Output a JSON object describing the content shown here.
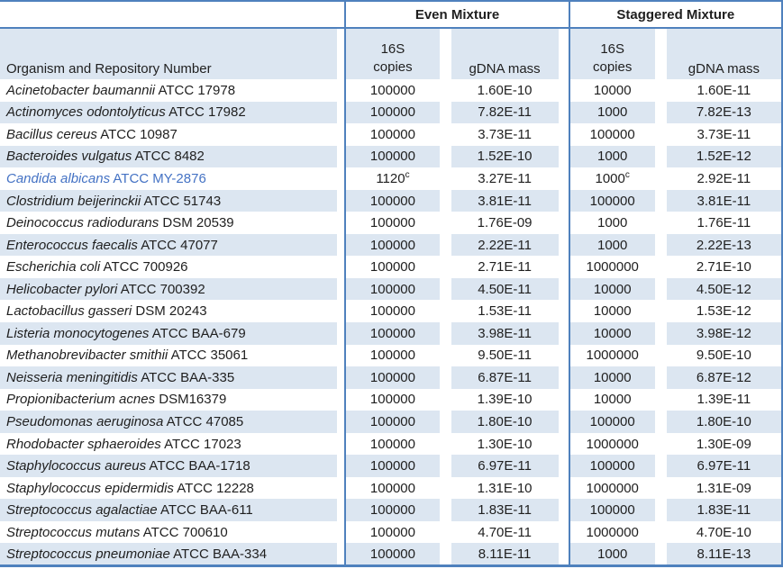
{
  "table": {
    "group_headers": {
      "organism": "",
      "even": "Even Mixture",
      "staggered": "Staggered Mixture"
    },
    "col_headers": {
      "organism": "Organism and Repository Number",
      "even_copies": "16S copies",
      "even_gdna": "gDNA mass",
      "staggered_copies": "16S copies",
      "staggered_gdna": "gDNA mass"
    },
    "colors": {
      "border_blue": "#4f81bd",
      "stripe_blue": "#dce6f1",
      "highlight_text_blue": "#4472c4"
    },
    "rows": [
      {
        "name": "Acinetobacter baumannii",
        "repo": "ATCC 17978",
        "even_copies": "100000",
        "even_sup": "",
        "even_gdna": "1.60E-10",
        "stag_copies": "10000",
        "stag_sup": "",
        "stag_gdna": "1.60E-11",
        "highlight": false
      },
      {
        "name": "Actinomyces odontolyticus",
        "repo": "ATCC 17982",
        "even_copies": "100000",
        "even_sup": "",
        "even_gdna": "7.82E-11",
        "stag_copies": "1000",
        "stag_sup": "",
        "stag_gdna": "7.82E-13",
        "highlight": false
      },
      {
        "name": "Bacillus cereus",
        "repo": "ATCC 10987",
        "even_copies": "100000",
        "even_sup": "",
        "even_gdna": "3.73E-11",
        "stag_copies": "100000",
        "stag_sup": "",
        "stag_gdna": "3.73E-11",
        "highlight": false
      },
      {
        "name": "Bacteroides vulgatus",
        "repo": "ATCC 8482",
        "even_copies": "100000",
        "even_sup": "",
        "even_gdna": "1.52E-10",
        "stag_copies": "1000",
        "stag_sup": "",
        "stag_gdna": "1.52E-12",
        "highlight": false
      },
      {
        "name": "Candida albicans",
        "repo": "ATCC MY-2876",
        "even_copies": "1120",
        "even_sup": "c",
        "even_gdna": "3.27E-11",
        "stag_copies": "1000",
        "stag_sup": "c",
        "stag_gdna": "2.92E-11",
        "highlight": true
      },
      {
        "name": "Clostridium beijerinckii",
        "repo": "ATCC 51743",
        "even_copies": "100000",
        "even_sup": "",
        "even_gdna": "3.81E-11",
        "stag_copies": "100000",
        "stag_sup": "",
        "stag_gdna": "3.81E-11",
        "highlight": false
      },
      {
        "name": "Deinococcus radiodurans",
        "repo": "DSM 20539",
        "even_copies": "100000",
        "even_sup": "",
        "even_gdna": "1.76E-09",
        "stag_copies": "1000",
        "stag_sup": "",
        "stag_gdna": "1.76E-11",
        "highlight": false
      },
      {
        "name": "Enterococcus faecalis",
        "repo": "ATCC 47077",
        "even_copies": "100000",
        "even_sup": "",
        "even_gdna": "2.22E-11",
        "stag_copies": "1000",
        "stag_sup": "",
        "stag_gdna": "2.22E-13",
        "highlight": false
      },
      {
        "name": "Escherichia coli",
        "repo": "ATCC 700926",
        "even_copies": "100000",
        "even_sup": "",
        "even_gdna": "2.71E-11",
        "stag_copies": "1000000",
        "stag_sup": "",
        "stag_gdna": "2.71E-10",
        "highlight": false
      },
      {
        "name": "Helicobacter pylori",
        "repo": "ATCC 700392",
        "even_copies": "100000",
        "even_sup": "",
        "even_gdna": "4.50E-11",
        "stag_copies": "10000",
        "stag_sup": "",
        "stag_gdna": "4.50E-12",
        "highlight": false
      },
      {
        "name": "Lactobacillus gasseri",
        "repo": "DSM 20243",
        "even_copies": "100000",
        "even_sup": "",
        "even_gdna": "1.53E-11",
        "stag_copies": "10000",
        "stag_sup": "",
        "stag_gdna": "1.53E-12",
        "highlight": false
      },
      {
        "name": "Listeria monocytogenes",
        "repo": "ATCC BAA-679",
        "even_copies": "100000",
        "even_sup": "",
        "even_gdna": "3.98E-11",
        "stag_copies": "10000",
        "stag_sup": "",
        "stag_gdna": "3.98E-12",
        "highlight": false
      },
      {
        "name": "Methanobrevibacter smithii",
        "repo": "ATCC 35061",
        "even_copies": "100000",
        "even_sup": "",
        "even_gdna": "9.50E-11",
        "stag_copies": "1000000",
        "stag_sup": "",
        "stag_gdna": "9.50E-10",
        "highlight": false
      },
      {
        "name": "Neisseria meningitidis",
        "repo": "ATCC BAA-335",
        "even_copies": "100000",
        "even_sup": "",
        "even_gdna": "6.87E-11",
        "stag_copies": "10000",
        "stag_sup": "",
        "stag_gdna": "6.87E-12",
        "highlight": false
      },
      {
        "name": "Propionibacterium acnes",
        "repo": "DSM16379",
        "even_copies": "100000",
        "even_sup": "",
        "even_gdna": "1.39E-10",
        "stag_copies": "10000",
        "stag_sup": "",
        "stag_gdna": "1.39E-11",
        "highlight": false
      },
      {
        "name": "Pseudomonas aeruginosa",
        "repo": "ATCC 47085",
        "even_copies": "100000",
        "even_sup": "",
        "even_gdna": "1.80E-10",
        "stag_copies": "100000",
        "stag_sup": "",
        "stag_gdna": "1.80E-10",
        "highlight": false
      },
      {
        "name": "Rhodobacter sphaeroides",
        "repo": "ATCC 17023",
        "even_copies": "100000",
        "even_sup": "",
        "even_gdna": "1.30E-10",
        "stag_copies": "1000000",
        "stag_sup": "",
        "stag_gdna": "1.30E-09",
        "highlight": false
      },
      {
        "name": "Staphylococcus aureus",
        "repo": "ATCC BAA-1718",
        "even_copies": "100000",
        "even_sup": "",
        "even_gdna": "6.97E-11",
        "stag_copies": "100000",
        "stag_sup": "",
        "stag_gdna": "6.97E-11",
        "highlight": false
      },
      {
        "name": "Staphylococcus epidermidis",
        "repo": "ATCC 12228",
        "even_copies": "100000",
        "even_sup": "",
        "even_gdna": "1.31E-10",
        "stag_copies": "1000000",
        "stag_sup": "",
        "stag_gdna": "1.31E-09",
        "highlight": false
      },
      {
        "name": "Streptococcus agalactiae",
        "repo": "ATCC BAA-611",
        "even_copies": "100000",
        "even_sup": "",
        "even_gdna": "1.83E-11",
        "stag_copies": "100000",
        "stag_sup": "",
        "stag_gdna": "1.83E-11",
        "highlight": false
      },
      {
        "name": "Streptococcus mutans",
        "repo": "ATCC 700610",
        "even_copies": "100000",
        "even_sup": "",
        "even_gdna": "4.70E-11",
        "stag_copies": "1000000",
        "stag_sup": "",
        "stag_gdna": "4.70E-10",
        "highlight": false
      },
      {
        "name": "Streptococcus pneumoniae",
        "repo": "ATCC BAA-334",
        "even_copies": "100000",
        "even_sup": "",
        "even_gdna": "8.11E-11",
        "stag_copies": "1000",
        "stag_sup": "",
        "stag_gdna": "8.11E-13",
        "highlight": false
      }
    ]
  }
}
